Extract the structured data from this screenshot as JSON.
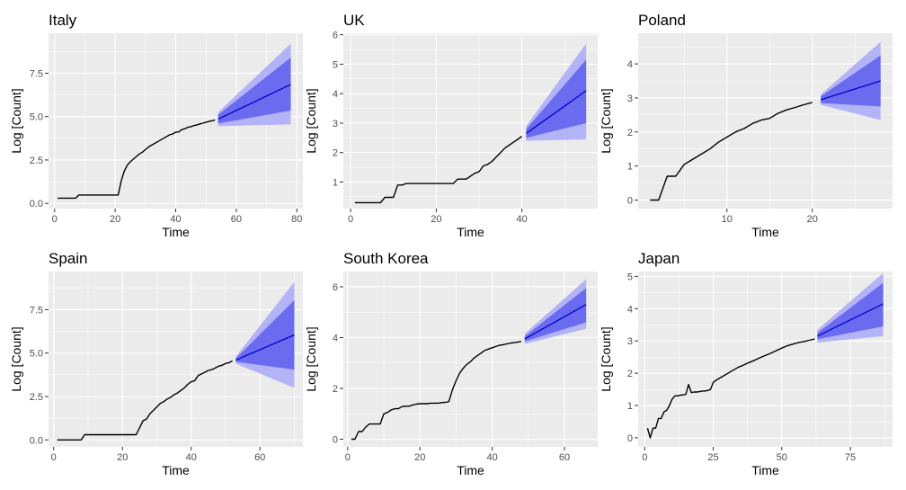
{
  "colors": {
    "panel_bg": "#ebebeb",
    "history": "#000000",
    "mean": "#0000cd",
    "band80": "#6b6bf0",
    "band95": "#b3b3f7"
  },
  "chart_data": [
    {
      "type": "line",
      "title": "Italy",
      "xlabel": "Time",
      "ylabel": "Log [Count]",
      "xlim": [
        -2,
        82
      ],
      "ylim": [
        -0.3,
        9.8
      ],
      "xticks": [
        0,
        20,
        40,
        60,
        80
      ],
      "yticks": [
        0,
        2.5,
        5,
        7.5
      ],
      "xtick_labels": [
        "0",
        "20",
        "40",
        "60",
        "80"
      ],
      "ytick_labels": [
        "0.0",
        "2.5",
        "5.0",
        "7.5"
      ],
      "history": {
        "x": [
          1,
          2,
          3,
          4,
          5,
          6,
          7,
          8,
          9,
          10,
          11,
          12,
          13,
          14,
          15,
          16,
          17,
          18,
          19,
          20,
          21,
          22,
          23,
          24,
          25,
          26,
          27,
          28,
          29,
          30,
          31,
          32,
          33,
          34,
          35,
          36,
          37,
          38,
          39,
          40,
          41,
          42,
          43,
          44,
          45,
          46,
          47,
          48,
          49,
          50,
          51,
          52,
          53
        ],
        "y": [
          0.3,
          0.3,
          0.3,
          0.3,
          0.3,
          0.3,
          0.3,
          0.48,
          0.48,
          0.48,
          0.48,
          0.48,
          0.48,
          0.48,
          0.48,
          0.48,
          0.48,
          0.48,
          0.48,
          0.48,
          0.48,
          1.3,
          1.85,
          2.2,
          2.4,
          2.55,
          2.7,
          2.85,
          2.95,
          3.1,
          3.25,
          3.35,
          3.45,
          3.55,
          3.65,
          3.75,
          3.85,
          3.95,
          4.0,
          4.1,
          4.12,
          4.25,
          4.3,
          4.38,
          4.42,
          4.48,
          4.52,
          4.58,
          4.62,
          4.68,
          4.72,
          4.76,
          4.8
        ]
      },
      "forecast": {
        "x": [
          54,
          78
        ],
        "mean": [
          4.85,
          6.85
        ],
        "lo80": [
          4.6,
          5.35
        ],
        "hi80": [
          5.1,
          8.4
        ],
        "lo95": [
          4.45,
          4.55
        ],
        "hi95": [
          5.25,
          9.2
        ]
      }
    },
    {
      "type": "line",
      "title": "UK",
      "xlabel": "Time",
      "ylabel": "Log [Count]",
      "xlim": [
        -1.7,
        57.7
      ],
      "ylim": [
        0.1,
        6.05
      ],
      "xticks": [
        0,
        20,
        40
      ],
      "yticks": [
        1,
        2,
        3,
        4,
        5,
        6
      ],
      "xtick_labels": [
        "0",
        "20",
        "40"
      ],
      "ytick_labels": [
        "1",
        "2",
        "3",
        "4",
        "5",
        "6"
      ],
      "history": {
        "x": [
          1,
          2,
          3,
          4,
          5,
          6,
          7,
          8,
          9,
          10,
          11,
          12,
          13,
          14,
          15,
          16,
          17,
          18,
          19,
          20,
          21,
          22,
          23,
          24,
          25,
          26,
          27,
          28,
          29,
          30,
          31,
          32,
          33,
          34,
          35,
          36,
          37,
          38,
          39,
          40
        ],
        "y": [
          0.3,
          0.3,
          0.3,
          0.3,
          0.3,
          0.3,
          0.3,
          0.48,
          0.48,
          0.48,
          0.9,
          0.9,
          0.95,
          0.95,
          0.95,
          0.95,
          0.95,
          0.95,
          0.95,
          0.95,
          0.95,
          0.95,
          0.95,
          0.95,
          1.1,
          1.1,
          1.1,
          1.2,
          1.3,
          1.35,
          1.55,
          1.6,
          1.7,
          1.85,
          2.0,
          2.15,
          2.25,
          2.35,
          2.45,
          2.55
        ]
      },
      "forecast": {
        "x": [
          41,
          55
        ],
        "mean": [
          2.65,
          4.1
        ],
        "lo80": [
          2.5,
          3.0
        ],
        "hi80": [
          2.8,
          5.15
        ],
        "lo95": [
          2.4,
          2.45
        ],
        "hi95": [
          2.9,
          5.7
        ]
      }
    },
    {
      "type": "line",
      "title": "Poland",
      "xlabel": "Time",
      "ylabel": "Log [Count]",
      "xlim": [
        -0.4,
        29.4
      ],
      "ylim": [
        -0.25,
        4.9
      ],
      "xticks": [
        10,
        20
      ],
      "yticks": [
        0,
        1,
        2,
        3,
        4
      ],
      "xtick_labels": [
        "10",
        "20"
      ],
      "ytick_labels": [
        "0",
        "1",
        "2",
        "3",
        "4"
      ],
      "history": {
        "x": [
          1,
          2,
          3,
          4,
          5,
          6,
          7,
          8,
          9,
          10,
          11,
          12,
          13,
          14,
          15,
          16,
          17,
          18,
          19,
          20
        ],
        "y": [
          0,
          0,
          0.7,
          0.7,
          1.05,
          1.2,
          1.35,
          1.5,
          1.7,
          1.85,
          2.0,
          2.1,
          2.25,
          2.35,
          2.4,
          2.55,
          2.65,
          2.72,
          2.8,
          2.87
        ]
      },
      "forecast": {
        "x": [
          21,
          28
        ],
        "mean": [
          2.95,
          3.5
        ],
        "lo80": [
          2.85,
          2.75
        ],
        "hi80": [
          3.05,
          4.25
        ],
        "lo95": [
          2.8,
          2.35
        ],
        "hi95": [
          3.1,
          4.65
        ]
      }
    },
    {
      "type": "line",
      "title": "Spain",
      "xlabel": "Time",
      "ylabel": "Log [Count]",
      "xlim": [
        -1.5,
        72.5
      ],
      "ylim": [
        -0.4,
        9.7
      ],
      "xticks": [
        0,
        20,
        40,
        60
      ],
      "yticks": [
        0,
        2.5,
        5,
        7.5
      ],
      "xtick_labels": [
        "0",
        "20",
        "40",
        "60"
      ],
      "ytick_labels": [
        "0.0",
        "2.5",
        "5.0",
        "7.5"
      ],
      "history": {
        "x": [
          1,
          2,
          3,
          4,
          5,
          6,
          7,
          8,
          9,
          10,
          11,
          12,
          13,
          14,
          15,
          16,
          17,
          18,
          19,
          20,
          21,
          22,
          23,
          24,
          25,
          26,
          27,
          28,
          29,
          30,
          31,
          32,
          33,
          34,
          35,
          36,
          37,
          38,
          39,
          40,
          41,
          42,
          43,
          44,
          45,
          46,
          47,
          48,
          49,
          50,
          51,
          52
        ],
        "y": [
          0,
          0,
          0,
          0,
          0,
          0,
          0,
          0,
          0.3,
          0.3,
          0.3,
          0.3,
          0.3,
          0.3,
          0.3,
          0.3,
          0.3,
          0.3,
          0.3,
          0.3,
          0.3,
          0.3,
          0.3,
          0.3,
          0.7,
          1.1,
          1.2,
          1.5,
          1.7,
          1.9,
          2.1,
          2.2,
          2.35,
          2.45,
          2.6,
          2.7,
          2.85,
          3.0,
          3.2,
          3.35,
          3.4,
          3.7,
          3.8,
          3.9,
          4.0,
          4.05,
          4.15,
          4.25,
          4.3,
          4.4,
          4.45,
          4.55
        ]
      },
      "forecast": {
        "x": [
          53,
          70
        ],
        "mean": [
          4.6,
          6.05
        ],
        "lo80": [
          4.5,
          4.05
        ],
        "hi80": [
          4.7,
          8.05
        ],
        "lo95": [
          4.4,
          3.0
        ],
        "hi95": [
          4.8,
          9.1
        ]
      }
    },
    {
      "type": "line",
      "title": "South Korea",
      "xlabel": "Time",
      "ylabel": "Log [Count]",
      "xlim": [
        -1.2,
        69.2
      ],
      "ylim": [
        -0.3,
        6.6
      ],
      "xticks": [
        0,
        20,
        40,
        60
      ],
      "yticks": [
        0,
        2,
        4,
        6
      ],
      "xtick_labels": [
        "0",
        "20",
        "40",
        "60"
      ],
      "ytick_labels": [
        "0",
        "2",
        "4",
        "6"
      ],
      "history": {
        "x": [
          1,
          2,
          3,
          4,
          5,
          6,
          7,
          8,
          9,
          10,
          11,
          12,
          13,
          14,
          15,
          16,
          17,
          18,
          19,
          20,
          21,
          22,
          23,
          24,
          25,
          26,
          27,
          28,
          29,
          30,
          31,
          32,
          33,
          34,
          35,
          36,
          37,
          38,
          39,
          40,
          41,
          42,
          43,
          44,
          45,
          46,
          47,
          48
        ],
        "y": [
          0,
          0,
          0.3,
          0.3,
          0.48,
          0.6,
          0.6,
          0.6,
          0.6,
          1.0,
          1.05,
          1.15,
          1.2,
          1.2,
          1.28,
          1.3,
          1.3,
          1.35,
          1.38,
          1.4,
          1.4,
          1.4,
          1.42,
          1.42,
          1.42,
          1.44,
          1.45,
          1.48,
          1.95,
          2.3,
          2.6,
          2.8,
          2.95,
          3.05,
          3.2,
          3.3,
          3.4,
          3.5,
          3.55,
          3.6,
          3.65,
          3.7,
          3.72,
          3.75,
          3.78,
          3.8,
          3.82,
          3.85
        ]
      },
      "forecast": {
        "x": [
          49,
          66
        ],
        "mean": [
          3.95,
          5.3
        ],
        "lo80": [
          3.85,
          4.6
        ],
        "hi80": [
          4.05,
          5.95
        ],
        "lo95": [
          3.75,
          4.35
        ],
        "hi95": [
          4.15,
          6.3
        ]
      }
    },
    {
      "type": "line",
      "title": "Japan",
      "xlabel": "Time",
      "ylabel": "Log [Count]",
      "xlim": [
        -2.4,
        90.4
      ],
      "ylim": [
        -0.28,
        5.15
      ],
      "xticks": [
        0,
        25,
        50,
        75
      ],
      "yticks": [
        0,
        1,
        2,
        3,
        4,
        5
      ],
      "xtick_labels": [
        "0",
        "25",
        "50",
        "75"
      ],
      "ytick_labels": [
        "0",
        "1",
        "2",
        "3",
        "4",
        "5"
      ],
      "history": {
        "x": [
          1,
          2,
          3,
          4,
          5,
          6,
          7,
          8,
          9,
          10,
          11,
          12,
          13,
          14,
          15,
          16,
          17,
          18,
          19,
          20,
          21,
          22,
          23,
          24,
          25,
          26,
          28,
          30,
          32,
          34,
          36,
          38,
          40,
          42,
          44,
          46,
          48,
          50,
          52,
          54,
          56,
          58,
          60,
          62
        ],
        "y": [
          0.3,
          0,
          0.3,
          0.3,
          0.6,
          0.6,
          0.8,
          0.85,
          1.0,
          1.2,
          1.3,
          1.3,
          1.32,
          1.33,
          1.35,
          1.65,
          1.4,
          1.42,
          1.42,
          1.43,
          1.45,
          1.45,
          1.47,
          1.5,
          1.72,
          1.78,
          1.88,
          1.98,
          2.08,
          2.18,
          2.25,
          2.33,
          2.4,
          2.48,
          2.55,
          2.62,
          2.7,
          2.78,
          2.85,
          2.9,
          2.95,
          2.98,
          3.02,
          3.06
        ]
      },
      "forecast": {
        "x": [
          63,
          87
        ],
        "mean": [
          3.15,
          4.15
        ],
        "lo80": [
          3.05,
          3.45
        ],
        "hi80": [
          3.25,
          4.8
        ],
        "lo95": [
          2.95,
          3.15
        ],
        "hi95": [
          3.35,
          5.1
        ]
      }
    }
  ]
}
